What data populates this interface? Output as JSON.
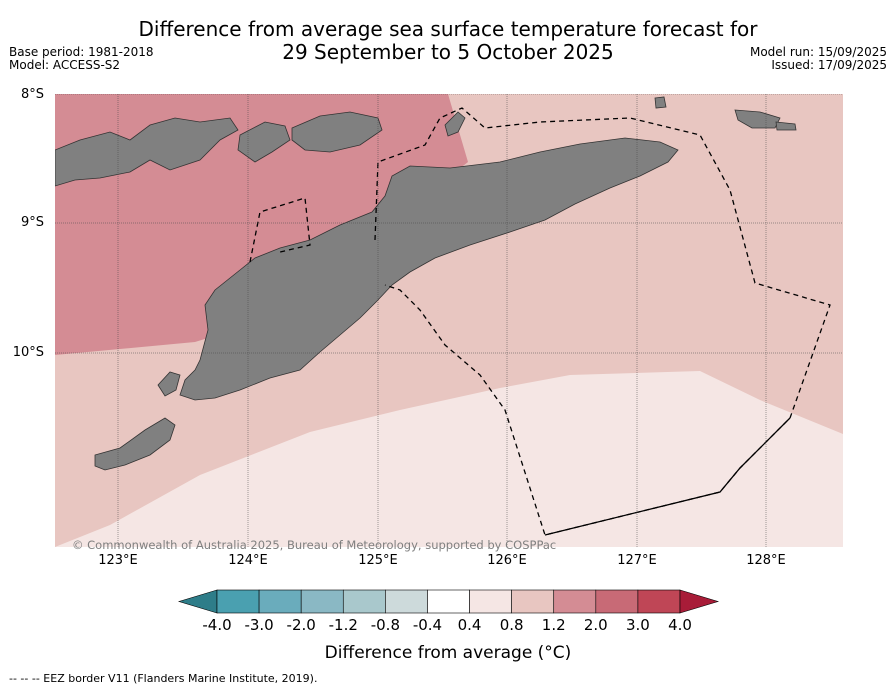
{
  "title_line1": "Difference from average sea surface temperature forecast for",
  "title_line2": "29 September to 5 October 2025",
  "base_period": "Base period: 1981-2018",
  "model": "Model: ACCESS-S2",
  "model_run": "Model run: 15/09/2025",
  "issued": "Issued: 17/09/2025",
  "lat_labels": [
    "8°S",
    "9°S",
    "10°S"
  ],
  "lon_labels": [
    "123°E",
    "124°E",
    "125°E",
    "126°E",
    "127°E",
    "128°E"
  ],
  "copyright": "© Commonwealth of Australia 2025, Bureau of Meteorology, supported by COSPPac",
  "colorbar": {
    "ticks": [
      "-4.0",
      "-3.0",
      "-2.0",
      "-1.2",
      "-0.8",
      "-0.4",
      "0.4",
      "0.8",
      "1.2",
      "2.0",
      "3.0",
      "4.0"
    ],
    "colors": [
      "#2e7d89",
      "#4aa0b0",
      "#6aacbc",
      "#8ab8c4",
      "#a9c8cc",
      "#cddadb",
      "#ffffff",
      "#f5e6e4",
      "#e8c6c1",
      "#d48c94",
      "#c86a76",
      "#bf4656",
      "#a81c38"
    ],
    "label": "Difference from average (°C)"
  },
  "map_colors": {
    "land": "#808080",
    "high_anomaly": "#d48c94",
    "mid_anomaly": "#e8c6c1",
    "low_anomaly": "#f5e6e4"
  },
  "footnote": "--  --  -- EEZ border V11 (Flanders Marine Institute, 2019)."
}
